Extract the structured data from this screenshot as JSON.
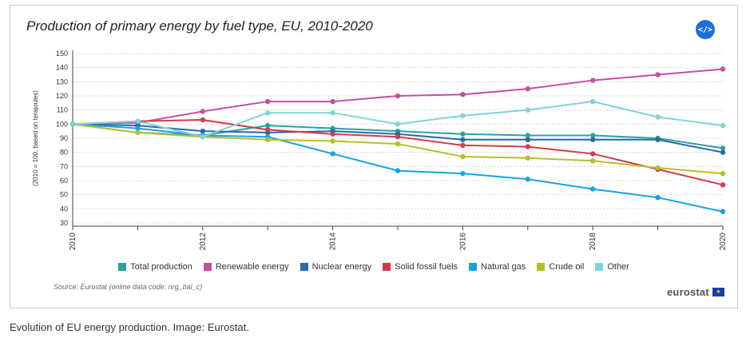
{
  "title": "Production of primary energy by fuel type, EU, 2010-2020",
  "embed_label": "</>",
  "source": "Source: Eurostat (online data code: nrg_bal_c)",
  "logo": {
    "text": "eurostat",
    "flag_icon": "eu-flag-icon"
  },
  "caption": "Evolution of EU energy production. Image: Eurostat.",
  "chart_data": {
    "type": "line",
    "title": "Production of primary energy by fuel type, EU, 2010-2020",
    "xlabel": "",
    "ylabel": "(2010 = 100, based on terajoules)",
    "x": [
      2010,
      2011,
      2012,
      2013,
      2014,
      2015,
      2016,
      2017,
      2018,
      2019,
      2020
    ],
    "xticks": [
      "2010",
      "2012",
      "2014",
      "2016",
      "2018",
      "2020"
    ],
    "ylim": [
      30,
      150
    ],
    "yticks": [
      30,
      40,
      50,
      60,
      70,
      80,
      90,
      100,
      110,
      120,
      130,
      140,
      150
    ],
    "grid": true,
    "legend_position": "bottom",
    "series": [
      {
        "name": "Total production",
        "color": "#2aa39c",
        "values": [
          100,
          94,
          92,
          99,
          97,
          95,
          93,
          92,
          92,
          90,
          83
        ]
      },
      {
        "name": "Renewable energy",
        "color": "#c24fa0",
        "values": [
          100,
          101,
          109,
          116,
          116,
          120,
          121,
          125,
          131,
          135,
          139
        ]
      },
      {
        "name": "Nuclear energy",
        "color": "#2b68a8",
        "values": [
          100,
          99,
          95,
          94,
          95,
          93,
          89,
          89,
          89,
          89,
          80
        ]
      },
      {
        "name": "Solid fossil fuels",
        "color": "#d43b4a",
        "values": [
          100,
          102,
          103,
          96,
          93,
          91,
          85,
          84,
          79,
          68,
          57
        ]
      },
      {
        "name": "Natural gas",
        "color": "#1aa3e0",
        "values": [
          100,
          97,
          92,
          91,
          79,
          67,
          65,
          61,
          54,
          48,
          38
        ]
      },
      {
        "name": "Crude oil",
        "color": "#b5bf2a",
        "values": [
          100,
          94,
          91,
          89,
          88,
          86,
          77,
          76,
          74,
          69,
          65
        ]
      },
      {
        "name": "Other",
        "color": "#7fd4d6",
        "values": [
          100,
          102,
          91,
          108,
          108,
          100,
          106,
          110,
          116,
          105,
          99
        ]
      }
    ]
  }
}
